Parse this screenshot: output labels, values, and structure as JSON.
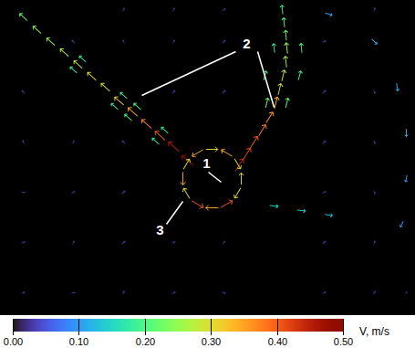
{
  "chart_data": {
    "type": "vector",
    "xlim": [
      0,
      455
    ],
    "ylim": [
      0,
      345
    ],
    "tick_labels": false,
    "vectors": [
      {
        "x": 25,
        "y": 25,
        "u": 0.02,
        "v": 0.01
      },
      {
        "x": 80,
        "y": 25,
        "u": 0.02,
        "v": 0.0
      },
      {
        "x": 135,
        "y": 25,
        "u": 0.01,
        "v": 0.02
      },
      {
        "x": 190,
        "y": 25,
        "u": 0.02,
        "v": 0.01
      },
      {
        "x": 245,
        "y": 25,
        "u": 0.02,
        "v": -0.01
      },
      {
        "x": 355,
        "y": 25,
        "u": 0.02,
        "v": 0.01
      },
      {
        "x": 410,
        "y": 25,
        "u": 0.01,
        "v": 0.02
      },
      {
        "x": 445,
        "y": 25,
        "u": 0.01,
        "v": 0.01
      },
      {
        "x": 25,
        "y": 80,
        "u": 0.02,
        "v": 0.01
      },
      {
        "x": 80,
        "y": 80,
        "u": 0.01,
        "v": 0.02
      },
      {
        "x": 135,
        "y": 80,
        "u": 0.02,
        "v": 0.02
      },
      {
        "x": 190,
        "y": 80,
        "u": 0.02,
        "v": 0.01
      },
      {
        "x": 245,
        "y": 80,
        "u": 0.01,
        "v": 0.02
      },
      {
        "x": 355,
        "y": 80,
        "u": 0.02,
        "v": 0.02
      },
      {
        "x": 410,
        "y": 80,
        "u": 0.01,
        "v": 0.02
      },
      {
        "x": 25,
        "y": 135,
        "u": 0.02,
        "v": 0.0
      },
      {
        "x": 80,
        "y": 135,
        "u": 0.02,
        "v": 0.01
      },
      {
        "x": 135,
        "y": 135,
        "u": 0.02,
        "v": 0.02
      },
      {
        "x": 355,
        "y": 135,
        "u": 0.02,
        "v": 0.01
      },
      {
        "x": 410,
        "y": 135,
        "u": 0.01,
        "v": -0.02
      },
      {
        "x": 25,
        "y": 190,
        "u": -0.01,
        "v": 0.02
      },
      {
        "x": 80,
        "y": 190,
        "u": 0.01,
        "v": 0.02
      },
      {
        "x": 135,
        "y": 190,
        "u": -0.02,
        "v": 0.02
      },
      {
        "x": 355,
        "y": 190,
        "u": 0.02,
        "v": 0.02
      },
      {
        "x": 410,
        "y": 190,
        "u": 0.01,
        "v": -0.02
      },
      {
        "x": 25,
        "y": 245,
        "u": -0.02,
        "v": 0.02
      },
      {
        "x": 190,
        "y": 245,
        "u": 0.02,
        "v": 0.02
      },
      {
        "x": 245,
        "y": 245,
        "u": 0.02,
        "v": 0.02
      },
      {
        "x": 355,
        "y": 245,
        "u": 0.02,
        "v": 0.02
      },
      {
        "x": 410,
        "y": 245,
        "u": 0.01,
        "v": -0.02
      },
      {
        "x": 80,
        "y": 300,
        "u": -0.02,
        "v": 0.02
      },
      {
        "x": 135,
        "y": 300,
        "u": -0.01,
        "v": 0.02
      },
      {
        "x": 190,
        "y": 300,
        "u": 0.01,
        "v": 0.02
      },
      {
        "x": 245,
        "y": 300,
        "u": 0.02,
        "v": 0.02
      },
      {
        "x": 355,
        "y": 300,
        "u": 0.02,
        "v": 0.01
      },
      {
        "x": 135,
        "y": 335,
        "u": 0.01,
        "v": 0.02
      },
      {
        "x": 190,
        "y": 335,
        "u": 0.01,
        "v": 0.02
      },
      {
        "x": 245,
        "y": 335,
        "u": 0.02,
        "v": 0.01
      },
      {
        "x": 410,
        "y": 335,
        "u": 0.01,
        "v": 0.02
      },
      {
        "x": 360,
        "y": 330,
        "u": 0.1,
        "v": -0.03
      },
      {
        "x": 410,
        "y": 300,
        "u": 0.08,
        "v": -0.08
      },
      {
        "x": 435,
        "y": 250,
        "u": 0.02,
        "v": -0.12
      },
      {
        "x": 445,
        "y": 200,
        "u": 0.0,
        "v": -0.12
      },
      {
        "x": 445,
        "y": 150,
        "u": -0.02,
        "v": -0.1
      },
      {
        "x": 440,
        "y": 100,
        "u": -0.04,
        "v": -0.08
      },
      {
        "x": 300,
        "y": 120,
        "u": 0.15,
        "v": -0.02
      },
      {
        "x": 330,
        "y": 115,
        "u": 0.14,
        "v": -0.02
      },
      {
        "x": 360,
        "y": 110,
        "u": 0.12,
        "v": -0.02
      },
      {
        "x": 205,
        "y": 170,
        "u": -0.36,
        "v": 0.32
      },
      {
        "x": 190,
        "y": 185,
        "u": -0.34,
        "v": 0.3
      },
      {
        "x": 175,
        "y": 197,
        "u": -0.3,
        "v": 0.27
      },
      {
        "x": 160,
        "y": 210,
        "u": -0.28,
        "v": 0.25
      },
      {
        "x": 145,
        "y": 223,
        "u": -0.26,
        "v": 0.23
      },
      {
        "x": 130,
        "y": 235,
        "u": -0.24,
        "v": 0.21
      },
      {
        "x": 115,
        "y": 250,
        "u": -0.22,
        "v": 0.2
      },
      {
        "x": 100,
        "y": 262,
        "u": -0.22,
        "v": 0.2
      },
      {
        "x": 85,
        "y": 275,
        "u": -0.21,
        "v": 0.19
      },
      {
        "x": 70,
        "y": 288,
        "u": -0.2,
        "v": 0.18
      },
      {
        "x": 55,
        "y": 300,
        "u": -0.19,
        "v": 0.17
      },
      {
        "x": 40,
        "y": 313,
        "u": -0.19,
        "v": 0.17
      },
      {
        "x": 25,
        "y": 327,
        "u": -0.16,
        "v": 0.15
      },
      {
        "x": 180,
        "y": 203,
        "u": -0.13,
        "v": 0.12
      },
      {
        "x": 170,
        "y": 191,
        "u": -0.13,
        "v": 0.12
      },
      {
        "x": 150,
        "y": 229,
        "u": -0.15,
        "v": 0.13
      },
      {
        "x": 140,
        "y": 217,
        "u": -0.15,
        "v": 0.13
      },
      {
        "x": 135,
        "y": 241,
        "u": -0.13,
        "v": 0.12
      },
      {
        "x": 125,
        "y": 229,
        "u": -0.13,
        "v": 0.12
      },
      {
        "x": 90,
        "y": 281,
        "u": -0.13,
        "v": 0.12
      },
      {
        "x": 80,
        "y": 269,
        "u": -0.13,
        "v": 0.12
      },
      {
        "x": 262,
        "y": 165,
        "u": 0.24,
        "v": 0.38
      },
      {
        "x": 270,
        "y": 177,
        "u": 0.22,
        "v": 0.35
      },
      {
        "x": 278,
        "y": 190,
        "u": 0.21,
        "v": 0.34
      },
      {
        "x": 287,
        "y": 203,
        "u": 0.2,
        "v": 0.32
      },
      {
        "x": 295,
        "y": 217,
        "u": 0.19,
        "v": 0.3
      },
      {
        "x": 302,
        "y": 233,
        "u": 0.08,
        "v": 0.32
      },
      {
        "x": 306,
        "y": 248,
        "u": 0.07,
        "v": 0.29
      },
      {
        "x": 310,
        "y": 263,
        "u": 0.07,
        "v": 0.27
      },
      {
        "x": 313,
        "y": 278,
        "u": -0.03,
        "v": 0.27
      },
      {
        "x": 314,
        "y": 293,
        "u": -0.03,
        "v": 0.25
      },
      {
        "x": 313,
        "y": 307,
        "u": -0.02,
        "v": 0.22
      },
      {
        "x": 311,
        "y": 321,
        "u": -0.02,
        "v": 0.2
      },
      {
        "x": 309,
        "y": 335,
        "u": -0.02,
        "v": 0.18
      },
      {
        "x": 292,
        "y": 233,
        "u": 0.05,
        "v": 0.21
      },
      {
        "x": 314,
        "y": 233,
        "u": 0.05,
        "v": 0.21
      },
      {
        "x": 290,
        "y": 263,
        "u": 0.05,
        "v": 0.19
      },
      {
        "x": 328,
        "y": 263,
        "u": 0.05,
        "v": 0.19
      },
      {
        "x": 300,
        "y": 293,
        "u": -0.02,
        "v": 0.18
      },
      {
        "x": 330,
        "y": 293,
        "u": -0.02,
        "v": 0.2
      },
      {
        "x": 264,
        "y": 150,
        "u": 0.0,
        "v": 0.3
      },
      {
        "x": 260,
        "y": 166,
        "u": 0.15,
        "v": -0.26
      },
      {
        "x": 248,
        "y": 178,
        "u": -0.3,
        "v": 0.18
      },
      {
        "x": 232,
        "y": 182,
        "u": 0.3,
        "v": 0.0
      },
      {
        "x": 216,
        "y": 178,
        "u": -0.3,
        "v": -0.18
      },
      {
        "x": 204,
        "y": 166,
        "u": 0.15,
        "v": 0.26
      },
      {
        "x": 200,
        "y": 150,
        "u": 0.0,
        "v": -0.35
      },
      {
        "x": 204,
        "y": 134,
        "u": -0.15,
        "v": 0.26
      },
      {
        "x": 216,
        "y": 122,
        "u": 0.35,
        "v": -0.2
      },
      {
        "x": 232,
        "y": 118,
        "u": -0.35,
        "v": 0.0
      },
      {
        "x": 248,
        "y": 122,
        "u": 0.35,
        "v": 0.2
      },
      {
        "x": 260,
        "y": 134,
        "u": -0.15,
        "v": -0.26
      }
    ],
    "colorbar": {
      "range": [
        0,
        0.5
      ],
      "ticks": [
        {
          "value": 0,
          "label": "0.00"
        },
        {
          "value": 0.1,
          "label": "0.10"
        },
        {
          "value": 0.2,
          "label": "0.20"
        },
        {
          "value": 0.3,
          "label": "0.30"
        },
        {
          "value": 0.4,
          "label": "0.40"
        },
        {
          "value": 0.5,
          "label": "0.50"
        }
      ],
      "label": "V, m/s"
    },
    "annotations": [
      {
        "text": "1",
        "x": 226,
        "y": 166,
        "lines": [
          [
            [
              228,
              157
            ],
            [
              242,
              146
            ]
          ]
        ]
      },
      {
        "text": "2",
        "x": 270,
        "y": 297,
        "lines": [
          [
            [
              258,
              289
            ],
            [
              155,
              241
            ]
          ],
          [
            [
              282,
              289
            ],
            [
              300,
              228
            ]
          ]
        ]
      },
      {
        "text": "3",
        "x": 175,
        "y": 93,
        "lines": [
          [
            [
              182,
              100
            ],
            [
              200,
              125
            ]
          ]
        ]
      }
    ]
  }
}
